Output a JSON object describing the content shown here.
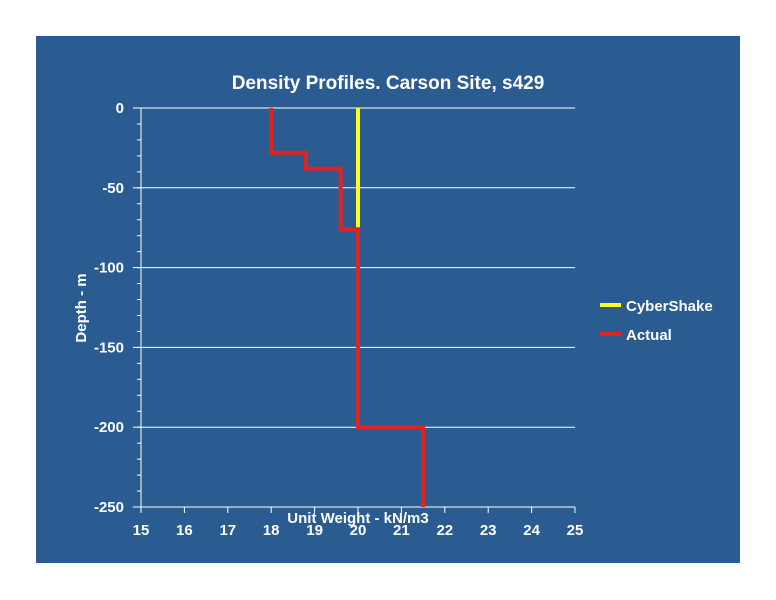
{
  "colors": {
    "background": "#ffffff",
    "plot_area": "#2b5c91",
    "gridline": "#ffffff",
    "axis": "#ffffff",
    "text": "#ffffff",
    "cybershake": "#ffff1a",
    "actual": "#e0231f"
  },
  "chart_data": {
    "type": "line",
    "title": "Density Profiles. Carson Site, s429",
    "xlabel": "Unit Weight - kN/m3",
    "ylabel": "Depth - m",
    "xlim": [
      15,
      25
    ],
    "ylim": [
      -250,
      0
    ],
    "x_ticks": [
      "15",
      "16",
      "17",
      "18",
      "19",
      "20",
      "21",
      "22",
      "23",
      "24",
      "25"
    ],
    "y_ticks": [
      "0",
      "-50",
      "-100",
      "-150",
      "-200",
      "-250"
    ],
    "grid": "horizontal major gridlines",
    "legend_position": "right",
    "series": [
      {
        "name": "CyberShake",
        "color": "#ffff1a",
        "points": [
          [
            20,
            0
          ],
          [
            20,
            -76
          ]
        ]
      },
      {
        "name": "Actual",
        "color": "#e0231f",
        "points": [
          [
            18,
            0
          ],
          [
            18,
            -28
          ],
          [
            18.8,
            -28
          ],
          [
            18.8,
            -38
          ],
          [
            19.6,
            -38
          ],
          [
            19.6,
            -76
          ],
          [
            20,
            -76
          ],
          [
            20,
            -200
          ],
          [
            21.5,
            -200
          ],
          [
            21.5,
            -250
          ]
        ]
      }
    ]
  }
}
